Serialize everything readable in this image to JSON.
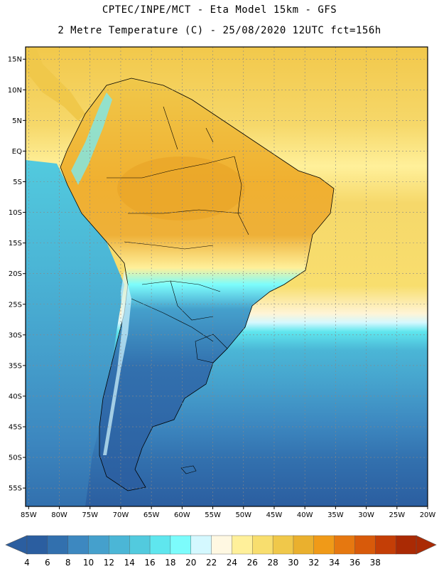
{
  "header": {
    "title_line1": "CPTEC/INPE/MCT  -  Eta Model 15km - GFS",
    "title_line2": "2 Metre Temperature (C) - 25/08/2020 12UTC fct=156h"
  },
  "map": {
    "lat_labels": [
      "15N",
      "10N",
      "5N",
      "EQ",
      "5S",
      "10S",
      "15S",
      "20S",
      "25S",
      "30S",
      "35S",
      "40S",
      "45S",
      "50S",
      "55S"
    ],
    "lat_values": [
      15,
      10,
      5,
      0,
      -5,
      -10,
      -15,
      -20,
      -25,
      -30,
      -35,
      -40,
      -45,
      -50,
      -55
    ],
    "lon_labels": [
      "85W",
      "80W",
      "75W",
      "70W",
      "65W",
      "60W",
      "55W",
      "50W",
      "45W",
      "40W",
      "35W",
      "30W",
      "25W",
      "20W"
    ],
    "lon_values": [
      -85,
      -80,
      -75,
      -70,
      -65,
      -60,
      -55,
      -50,
      -45,
      -40,
      -35,
      -30,
      -25,
      -20
    ],
    "extent": {
      "lon_min": -85.5,
      "lon_max": -20,
      "lat_min": -58,
      "lat_max": 17
    },
    "colors": {
      "ocean_cold": "#2b5e9e",
      "land_warm": "#f0a818",
      "ocean_warm": "#f2c84b"
    }
  },
  "colorbar": {
    "labels": [
      "4",
      "6",
      "8",
      "10",
      "12",
      "14",
      "16",
      "18",
      "20",
      "22",
      "24",
      "26",
      "28",
      "30",
      "32",
      "34",
      "36",
      "38"
    ],
    "colors": [
      "#2b5ea0",
      "#3270ae",
      "#3d88c0",
      "#45a0cc",
      "#4bb6d6",
      "#52cade",
      "#5fe6ee",
      "#7cfcfc",
      "#d4f8ff",
      "#fff8e2",
      "#fff09a",
      "#f8de6e",
      "#f0c84a",
      "#eab02e",
      "#f09a18",
      "#e67810",
      "#d85a0a",
      "#c43e06",
      "#aa2a04"
    ]
  }
}
